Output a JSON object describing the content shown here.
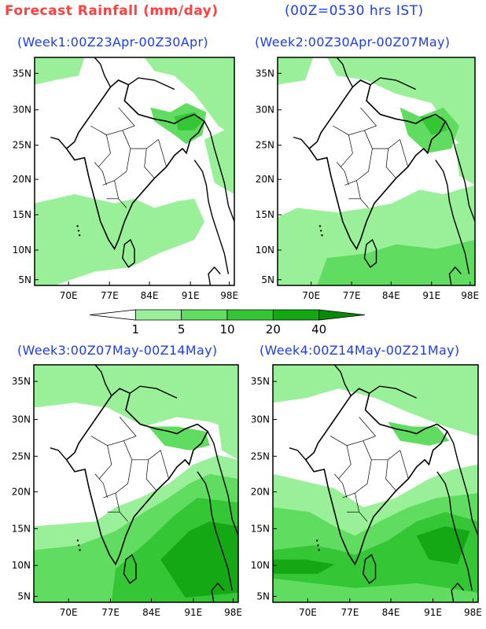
{
  "header": {
    "title": "Forecast Rainfall (mm/day)",
    "time_note": "(00Z=0530 hrs IST)"
  },
  "panels": [
    {
      "title": "(Week1:00Z23Apr-00Z30Apr)"
    },
    {
      "title": "(Week2:00Z30Apr-00Z07May)"
    },
    {
      "title": "(Week3:00Z07May-00Z14May)"
    },
    {
      "title": "(Week4:00Z14May-00Z21May)"
    }
  ],
  "axes": {
    "lat_labels": [
      "35N",
      "30N",
      "25N",
      "20N",
      "15N",
      "10N",
      "5N"
    ],
    "lon_labels": [
      "70E",
      "77E",
      "84E",
      "91E",
      "98E"
    ]
  },
  "colorbar": {
    "thresholds": [
      "1",
      "5",
      "10",
      "20",
      "40"
    ],
    "colors": [
      "#ffffff",
      "#99f099",
      "#60dc60",
      "#34c634",
      "#14a814",
      "#0a8a0a",
      "#066b06"
    ]
  }
}
